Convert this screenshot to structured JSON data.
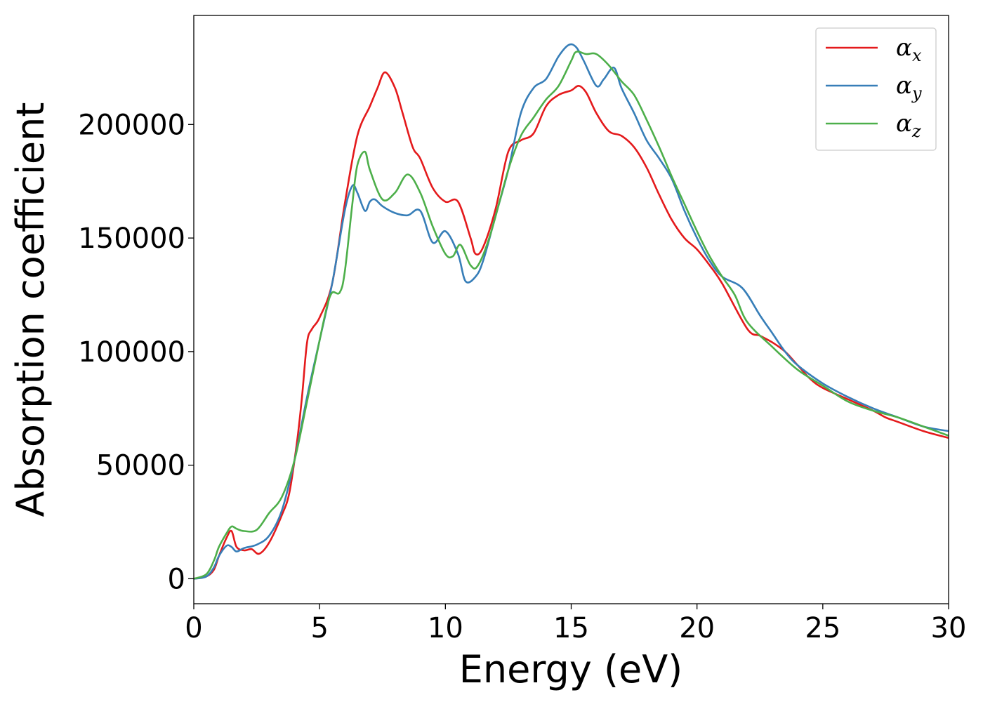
{
  "chart_data": {
    "type": "line",
    "xlabel": "Energy (eV)",
    "ylabel": "Absorption coefficient",
    "xlim": [
      0,
      30
    ],
    "ylim": [
      -11000,
      248000
    ],
    "xticks": [
      0,
      5,
      10,
      15,
      20,
      25,
      30
    ],
    "yticks": [
      0,
      50000,
      100000,
      150000,
      200000
    ],
    "grid": false,
    "legend_position": "top-right",
    "series": [
      {
        "name": "α_x",
        "symbol": "α",
        "subscript": "x",
        "color": "#e41a1c",
        "x": [
          0,
          0.5,
          0.8,
          1.0,
          1.3,
          1.5,
          1.7,
          2.0,
          2.3,
          2.6,
          3.0,
          3.5,
          3.8,
          4.1,
          4.3,
          4.5,
          4.7,
          5.0,
          5.5,
          6.0,
          6.5,
          7.0,
          7.3,
          7.6,
          8.0,
          8.3,
          8.7,
          9.0,
          9.5,
          10.0,
          10.5,
          11.0,
          11.2,
          11.5,
          12.0,
          12.5,
          13.0,
          13.5,
          14.0,
          14.5,
          15.0,
          15.3,
          15.6,
          16.0,
          16.5,
          17.0,
          17.5,
          18.0,
          18.5,
          19.0,
          19.5,
          20.0,
          20.5,
          21.0,
          22.0,
          22.5,
          23.0,
          23.5,
          24.0,
          24.5,
          25.0,
          26.0,
          27.0,
          27.5,
          28.0,
          29.0,
          30.0
        ],
        "y": [
          0,
          1000,
          4000,
          10000,
          18000,
          21000,
          14000,
          12500,
          13000,
          11000,
          16000,
          28000,
          38000,
          60000,
          80000,
          104000,
          110000,
          115000,
          130000,
          165000,
          195000,
          208000,
          216000,
          223000,
          216000,
          205000,
          190000,
          185000,
          172000,
          166000,
          166000,
          150000,
          143000,
          146000,
          163000,
          188000,
          193000,
          196000,
          208000,
          213000,
          215000,
          217000,
          214000,
          205000,
          197000,
          195000,
          190000,
          181000,
          169000,
          158000,
          150000,
          145000,
          138000,
          130000,
          110000,
          107000,
          104000,
          100000,
          94000,
          88000,
          84000,
          79000,
          74000,
          71000,
          69000,
          65000,
          62000
        ]
      },
      {
        "name": "α_y",
        "symbol": "α",
        "subscript": "y",
        "color": "#377eb8",
        "x": [
          0,
          0.5,
          0.8,
          1.0,
          1.3,
          1.5,
          1.7,
          2.0,
          2.5,
          3.0,
          3.5,
          4.0,
          4.5,
          5.0,
          5.5,
          6.0,
          6.3,
          6.5,
          6.8,
          7.0,
          7.2,
          7.5,
          8.0,
          8.5,
          9.0,
          9.5,
          10.0,
          10.5,
          10.8,
          11.2,
          11.5,
          12.0,
          12.5,
          13.0,
          13.5,
          14.0,
          14.5,
          14.9,
          15.2,
          15.5,
          16.0,
          16.3,
          16.7,
          17.0,
          17.5,
          18.0,
          18.5,
          19.0,
          19.5,
          20.0,
          20.5,
          21.0,
          21.8,
          22.5,
          23.0,
          23.5,
          24.0,
          25.0,
          26.0,
          27.0,
          28.0,
          29.0,
          30.0
        ],
        "y": [
          0,
          1000,
          5000,
          10000,
          14500,
          14000,
          12000,
          13500,
          15000,
          19000,
          30000,
          52000,
          80000,
          105000,
          130000,
          162000,
          173000,
          170000,
          162000,
          166000,
          167000,
          164000,
          161000,
          160000,
          162000,
          148000,
          153000,
          143000,
          131000,
          133000,
          140000,
          160000,
          180000,
          205000,
          216000,
          220000,
          230000,
          235000,
          234000,
          228000,
          217000,
          220000,
          225000,
          216000,
          205000,
          193000,
          185000,
          176000,
          162000,
          150000,
          140000,
          133000,
          128000,
          116000,
          108000,
          100000,
          94000,
          86000,
          80000,
          75000,
          71000,
          67000,
          65000
        ]
      },
      {
        "name": "α_z",
        "symbol": "α",
        "subscript": "z",
        "color": "#4daf4a",
        "x": [
          0,
          0.5,
          0.8,
          1.0,
          1.3,
          1.5,
          1.7,
          2.0,
          2.5,
          3.0,
          3.5,
          4.0,
          4.5,
          5.0,
          5.3,
          5.5,
          5.8,
          6.0,
          6.3,
          6.5,
          6.8,
          7.0,
          7.5,
          8.0,
          8.5,
          9.0,
          9.5,
          10.0,
          10.3,
          10.6,
          11.0,
          11.3,
          11.8,
          12.5,
          13.0,
          13.5,
          14.0,
          14.5,
          15.0,
          15.2,
          15.6,
          16.0,
          16.5,
          17.0,
          17.5,
          18.0,
          18.5,
          19.0,
          19.5,
          20.0,
          20.5,
          21.0,
          21.5,
          22.0,
          23.0,
          24.0,
          25.0,
          26.0,
          27.0,
          28.0,
          29.0,
          30.0
        ],
        "y": [
          0,
          2000,
          8000,
          14000,
          20000,
          23000,
          22000,
          21000,
          21500,
          29000,
          36000,
          52000,
          78000,
          105000,
          120000,
          126000,
          126000,
          135000,
          165000,
          182000,
          188000,
          180000,
          167000,
          170000,
          178000,
          170000,
          155000,
          143000,
          142000,
          147000,
          138000,
          138000,
          152000,
          180000,
          195000,
          203000,
          211000,
          217000,
          228000,
          232000,
          231000,
          231000,
          226000,
          219000,
          213000,
          202000,
          190000,
          177000,
          165000,
          153000,
          142000,
          133000,
          125000,
          113000,
          102000,
          92000,
          85000,
          78000,
          74000,
          71000,
          67000,
          63000
        ]
      }
    ]
  }
}
